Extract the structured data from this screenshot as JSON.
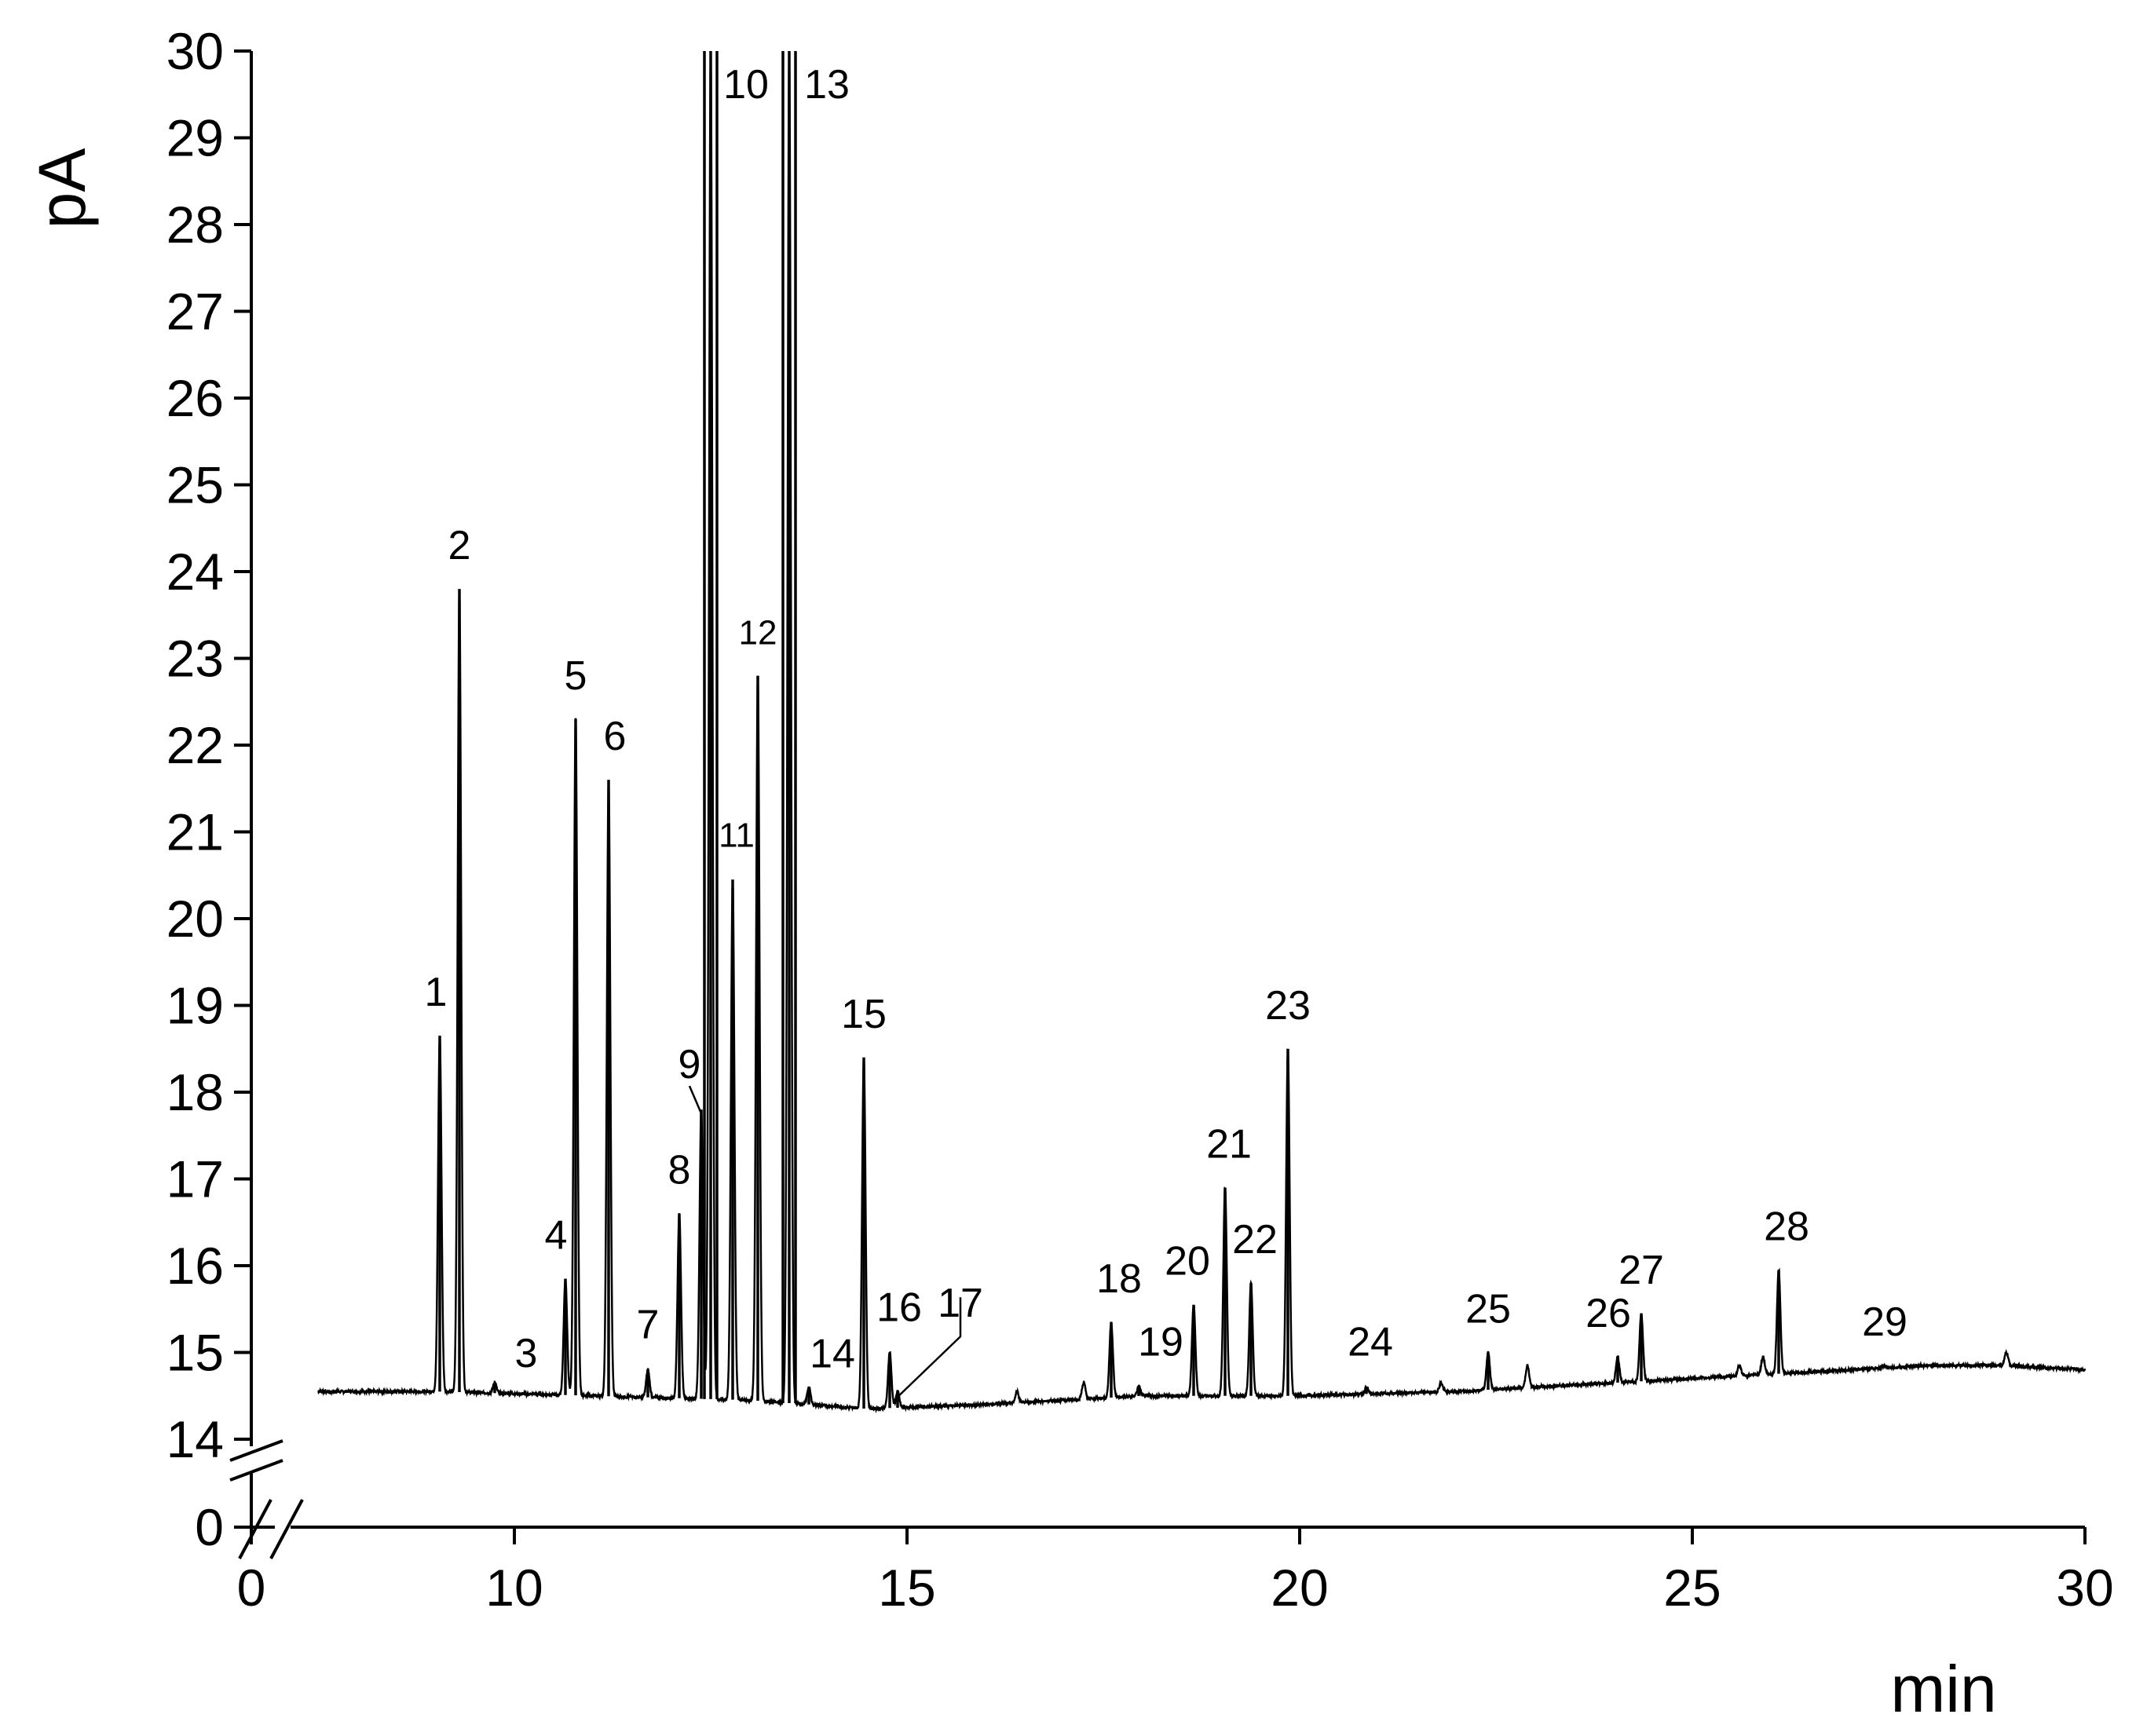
{
  "chart_data": {
    "type": "line",
    "title": "",
    "xlabel": "min",
    "ylabel": "pA",
    "xlim": [
      0,
      30
    ],
    "x_break": [
      0,
      7.5
    ],
    "ylim": [
      14,
      30
    ],
    "y_break": [
      0,
      14
    ],
    "x_ticks": [
      0,
      10,
      15,
      20,
      25,
      30
    ],
    "y_ticks": [
      0,
      14,
      15,
      16,
      17,
      18,
      19,
      20,
      21,
      22,
      23,
      24,
      25,
      26,
      27,
      28,
      29,
      30
    ],
    "x_tick_labels": [
      "0",
      "10",
      "15",
      "20",
      "25",
      "30"
    ],
    "y_tick_labels": [
      "0",
      "14",
      "15",
      "16",
      "17",
      "18",
      "19",
      "20",
      "21",
      "22",
      "23",
      "24",
      "25",
      "26",
      "27",
      "28",
      "29",
      "30"
    ],
    "grid": false,
    "baseline": [
      {
        "x": 7.5,
        "y": 14.55
      },
      {
        "x": 9,
        "y": 14.55
      },
      {
        "x": 11,
        "y": 14.5
      },
      {
        "x": 13,
        "y": 14.45
      },
      {
        "x": 14.5,
        "y": 14.35
      },
      {
        "x": 16,
        "y": 14.4
      },
      {
        "x": 18,
        "y": 14.5
      },
      {
        "x": 20,
        "y": 14.5
      },
      {
        "x": 22,
        "y": 14.55
      },
      {
        "x": 24,
        "y": 14.65
      },
      {
        "x": 26,
        "y": 14.75
      },
      {
        "x": 28,
        "y": 14.85
      },
      {
        "x": 29,
        "y": 14.85
      },
      {
        "x": 30,
        "y": 14.8
      }
    ],
    "peaks": [
      {
        "label": "1",
        "x": 9.05,
        "y": 18.65
      },
      {
        "label": "2",
        "x": 9.3,
        "y": 23.8
      },
      {
        "label": "3",
        "x": 9.75,
        "y": 14.65
      },
      {
        "label": "4",
        "x": 10.65,
        "y": 15.85
      },
      {
        "label": "5",
        "x": 10.78,
        "y": 22.3
      },
      {
        "label": "6",
        "x": 11.2,
        "y": 21.6
      },
      {
        "label": "7",
        "x": 11.7,
        "y": 14.8
      },
      {
        "label": "8",
        "x": 12.1,
        "y": 16.6
      },
      {
        "label": "9",
        "x": 12.38,
        "y": 17.8
      },
      {
        "label": "10",
        "x": 12.5,
        "y": 30
      },
      {
        "label": "11",
        "x": 12.78,
        "y": 20.45
      },
      {
        "label": "12",
        "x": 13.1,
        "y": 22.8
      },
      {
        "label": "13",
        "x": 13.5,
        "y": 30
      },
      {
        "label": "14",
        "x": 13.75,
        "y": 14.6
      },
      {
        "label": "15",
        "x": 14.45,
        "y": 18.4
      },
      {
        "label": "16",
        "x": 14.78,
        "y": 15.0
      },
      {
        "label": "17",
        "x": 14.88,
        "y": 14.55
      },
      {
        "label": "18",
        "x": 17.6,
        "y": 15.35
      },
      {
        "label": "19",
        "x": 17.95,
        "y": 14.6
      },
      {
        "label": "20",
        "x": 18.65,
        "y": 15.55
      },
      {
        "label": "21",
        "x": 19.05,
        "y": 16.9
      },
      {
        "label": "22",
        "x": 19.38,
        "y": 15.8
      },
      {
        "label": "23",
        "x": 19.85,
        "y": 18.5
      },
      {
        "label": "24",
        "x": 20.85,
        "y": 14.6
      },
      {
        "label": "25",
        "x": 22.4,
        "y": 15.0
      },
      {
        "label": "26",
        "x": 24.05,
        "y": 14.95
      },
      {
        "label": "27",
        "x": 24.35,
        "y": 15.45
      },
      {
        "label": "28",
        "x": 26.1,
        "y": 15.95
      },
      {
        "label": "29",
        "x": 27.45,
        "y": 14.85
      }
    ],
    "minor_peaks": [
      {
        "x": 16.4,
        "y": 14.55
      },
      {
        "x": 17.25,
        "y": 14.65
      },
      {
        "x": 21.8,
        "y": 14.65
      },
      {
        "x": 22.9,
        "y": 14.85
      },
      {
        "x": 25.6,
        "y": 14.85
      },
      {
        "x": 25.9,
        "y": 14.95
      },
      {
        "x": 29.0,
        "y": 15.0
      }
    ]
  }
}
